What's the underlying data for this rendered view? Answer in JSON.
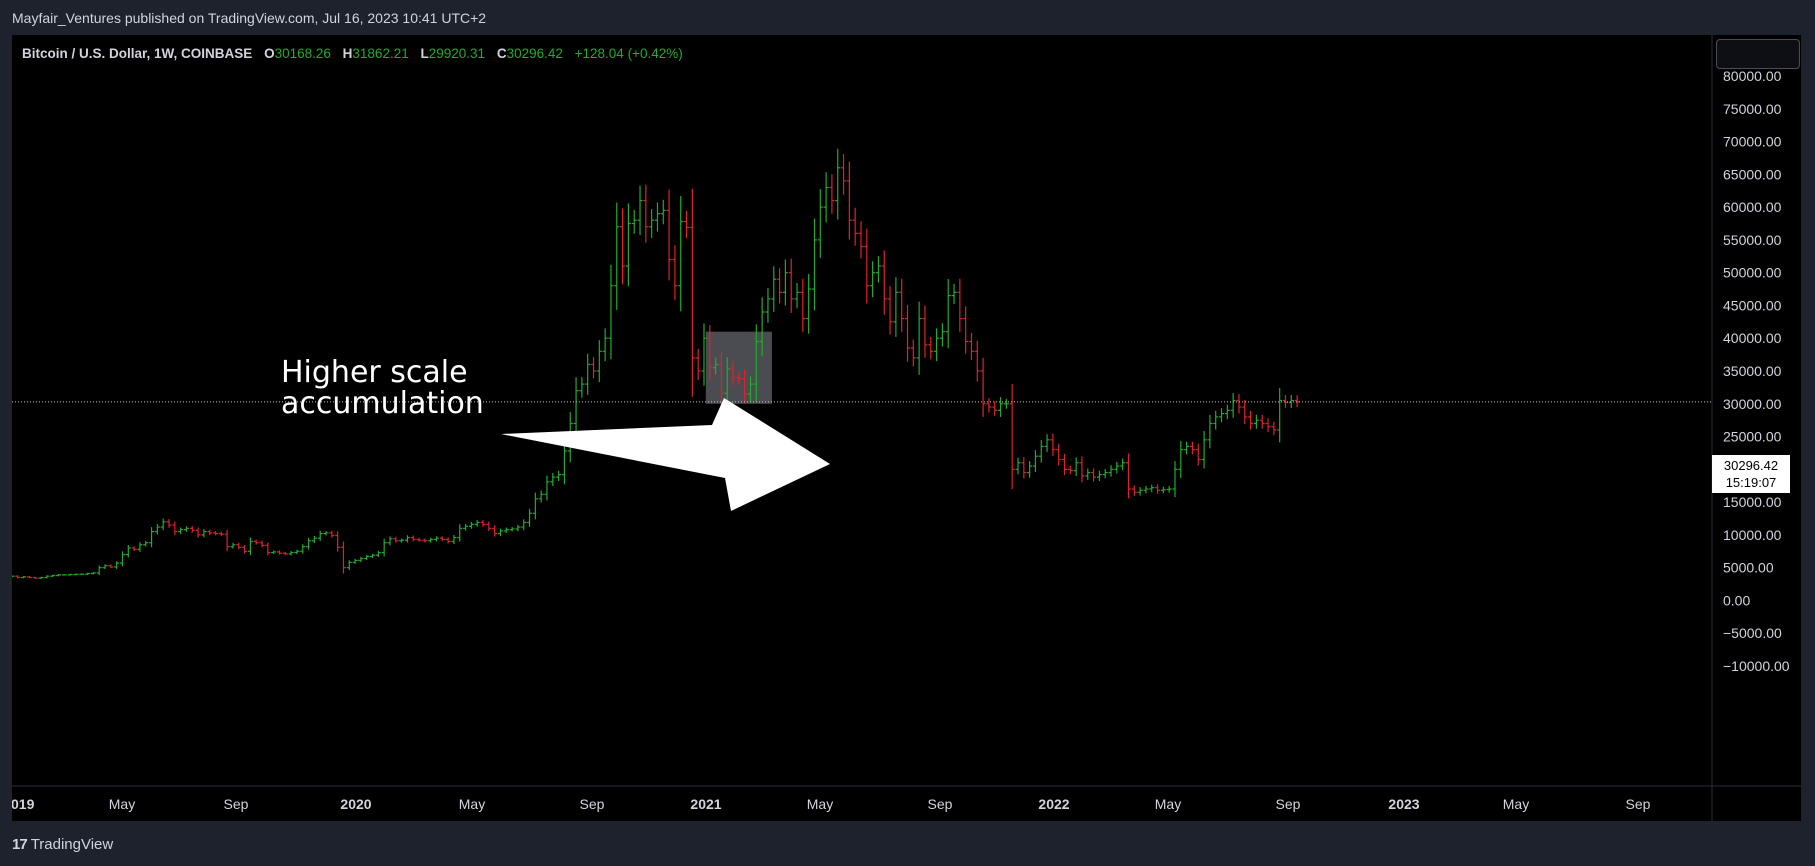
{
  "header": {
    "published": "Mayfair_Ventures published on TradingView.com, Jul 16, 2023 10:41 UTC+2"
  },
  "legend": {
    "symbol": "Bitcoin / U.S. Dollar, 1W, COINBASE",
    "open_label": "O",
    "open": "30168.26",
    "high_label": "H",
    "high": "31862.21",
    "low_label": "L",
    "low": "29920.31",
    "close_label": "C",
    "close": "30296.42",
    "change": "+128.04 (+0.42%)"
  },
  "annotation": {
    "line1": "Higher scale",
    "line2": "accumulation"
  },
  "price_label": {
    "price": "30296.42",
    "countdown": "15:19:07"
  },
  "footer": {
    "brand_glyph": "17",
    "brand": "TradingView"
  },
  "colors": {
    "up": "#22ab2c",
    "down": "#e0202e",
    "background": "#000000",
    "frame": "#1e222d"
  },
  "chart_data": {
    "type": "ohlc",
    "interval": "1W",
    "ylim": [
      -10000,
      80000
    ],
    "y_ticks": [
      "80000.00",
      "75000.00",
      "70000.00",
      "65000.00",
      "60000.00",
      "55000.00",
      "50000.00",
      "45000.00",
      "40000.00",
      "35000.00",
      "30000.00",
      "25000.00",
      "20000.00",
      "15000.00",
      "10000.00",
      "5000.00",
      "0.00",
      "−5000.00",
      "−10000.00"
    ],
    "x_ticks": [
      {
        "label": "019",
        "bold": true
      },
      {
        "label": "May",
        "bold": false
      },
      {
        "label": "Sep",
        "bold": false
      },
      {
        "label": "2020",
        "bold": true
      },
      {
        "label": "May",
        "bold": false
      },
      {
        "label": "Sep",
        "bold": false
      },
      {
        "label": "2021",
        "bold": true
      },
      {
        "label": "May",
        "bold": false
      },
      {
        "label": "Sep",
        "bold": false
      },
      {
        "label": "2022",
        "bold": true
      },
      {
        "label": "May",
        "bold": false
      },
      {
        "label": "Sep",
        "bold": false
      },
      {
        "label": "2023",
        "bold": true
      },
      {
        "label": "May",
        "bold": false
      },
      {
        "label": "Sep",
        "bold": false
      }
    ],
    "last_price": 30296.42,
    "highlight_range": {
      "week_start": 120,
      "week_end": 130,
      "low": 30000,
      "high": 41000
    },
    "closes": [
      3700,
      3500,
      3600,
      3500,
      3400,
      3500,
      3700,
      3800,
      3900,
      3900,
      3950,
      4000,
      4000,
      4100,
      4200,
      5000,
      5300,
      5100,
      5700,
      7000,
      8000,
      7800,
      8500,
      8800,
      10500,
      11200,
      12000,
      11500,
      10500,
      10800,
      11000,
      10700,
      10000,
      10500,
      10300,
      10200,
      10100,
      8200,
      8500,
      8100,
      7500,
      9000,
      8800,
      8400,
      7300,
      7400,
      7200,
      7100,
      7300,
      7500,
      8200,
      9100,
      9500,
      10200,
      10300,
      9900,
      8100,
      5000,
      5800,
      6100,
      6400,
      6700,
      6900,
      7300,
      8800,
      9400,
      9100,
      9200,
      9600,
      9300,
      9200,
      9100,
      9300,
      9500,
      9300,
      9000,
      9600,
      11000,
      11300,
      11600,
      11900,
      11600,
      11000,
      10200,
      10600,
      10800,
      10900,
      11200,
      11900,
      13300,
      15500,
      16200,
      18100,
      18800,
      19200,
      22800,
      27000,
      32000,
      33000,
      36000,
      35000,
      38000,
      40000,
      48000,
      57000,
      51000,
      57500,
      58000,
      61000,
      57000,
      58000,
      59000,
      59500,
      52000,
      48000,
      57800,
      56900,
      37000,
      35000,
      40000,
      35500,
      36000,
      31600,
      35300,
      34000,
      33800,
      31500,
      33000,
      39500,
      44000,
      46000,
      49000,
      47000,
      50000,
      46000,
      47000,
      43000,
      47500,
      55000,
      60000,
      63000,
      61000,
      66000,
      64000,
      58000,
      56000,
      54000,
      48000,
      50000,
      51000,
      46000,
      42500,
      47000,
      43000,
      38500,
      37000,
      43000,
      39000,
      38000,
      40000,
      41000,
      46500,
      47000,
      43000,
      39500,
      38000,
      35000,
      30000,
      29500,
      29000,
      30000,
      30000,
      20000,
      21000,
      19500,
      20500,
      22000,
      23500,
      24500,
      23000,
      21500,
      20000,
      19800,
      21000,
      19000,
      19500,
      18800,
      19200,
      19500,
      20000,
      20500,
      21000,
      17000,
      16500,
      16800,
      17000,
      17200,
      16800,
      16900,
      17000,
      20000,
      23000,
      23500,
      23000,
      21500,
      24500,
      27000,
      28000,
      28500,
      29000,
      30500,
      29500,
      28000,
      27000,
      27500,
      27000,
      26500,
      26000,
      30500,
      30200,
      30500,
      30296.42
    ]
  }
}
